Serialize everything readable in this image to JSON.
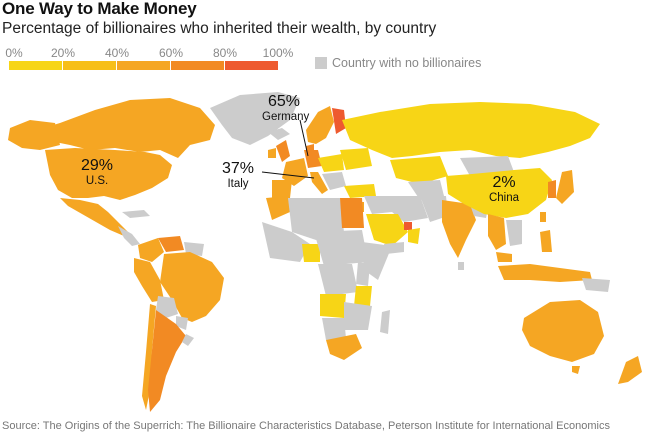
{
  "title": "One Way to Make Money",
  "subtitle": "Percentage of billionaires who inherited their wealth, by country",
  "legend": {
    "scale_ticks": [
      "0%",
      "20%",
      "40%",
      "60%",
      "80%",
      "100%"
    ],
    "scale_colors": [
      "#f7d516",
      "#f7bf18",
      "#f5a623",
      "#f28a23",
      "#ee5a2f"
    ],
    "no_billionaires_label": "Country with no billionaires",
    "no_billionaires_color": "#cccccc"
  },
  "callouts": [
    {
      "pct": "65%",
      "name": "Germany"
    },
    {
      "pct": "29%",
      "name": "U.S."
    },
    {
      "pct": "37%",
      "name": "Italy"
    },
    {
      "pct": "2%",
      "name": "China"
    }
  ],
  "source": "Source: The Origins of the Superrich: The Billionaire Characteristics Database, Peterson Institute for International Economics"
}
